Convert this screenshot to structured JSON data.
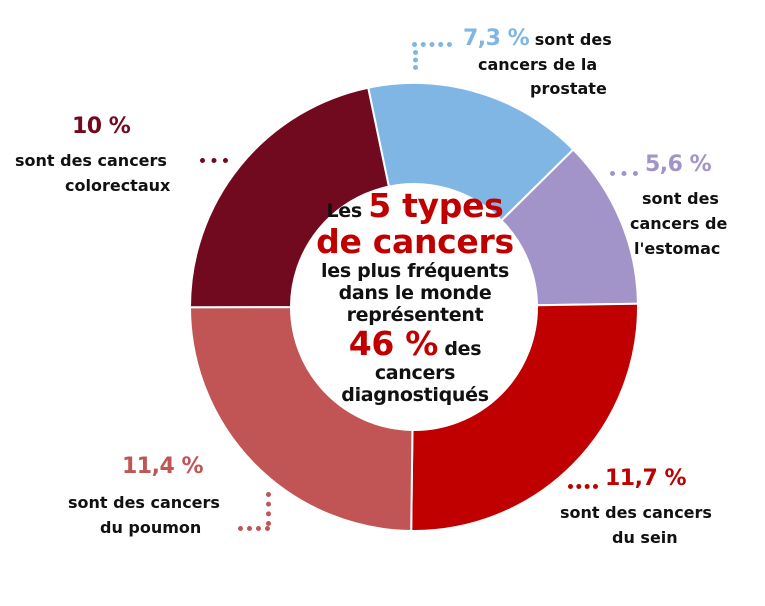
{
  "chart_data": {
    "type": "pie",
    "variant": "donut",
    "categories": [
      "prostate",
      "estomac",
      "sein",
      "poumon",
      "colorectaux"
    ],
    "values": [
      7.3,
      5.6,
      11.7,
      11.4,
      10
    ],
    "colors": [
      "#7fb6e4",
      "#a294c8",
      "#c00000",
      "#c15454",
      "#710a1f"
    ],
    "labels": [
      {
        "pct": "7,3 %",
        "line1": "sont des",
        "line2": "cancers de la",
        "line3": "prostate"
      },
      {
        "pct": "5,6 %",
        "line1": "sont des",
        "line2": "cancers de",
        "line3": "l'estomac"
      },
      {
        "pct": "11,7 %",
        "line1": "sont des cancers",
        "line2": "du sein"
      },
      {
        "pct": "11,4 %",
        "line1": "sont des cancers",
        "line2": "du poumon"
      },
      {
        "pct": "10 %",
        "line1": "sont des cancers",
        "line2": "colorectaux"
      }
    ],
    "title": {
      "w1": "Les",
      "w2": "5 types",
      "w3": "de cancers",
      "w4": "les plus fréquents",
      "w5": "dans le monde",
      "w6": "représentent",
      "w7": "46 %",
      "w8": "des",
      "w9": "cancers",
      "w10": "diagnostiqués"
    }
  }
}
